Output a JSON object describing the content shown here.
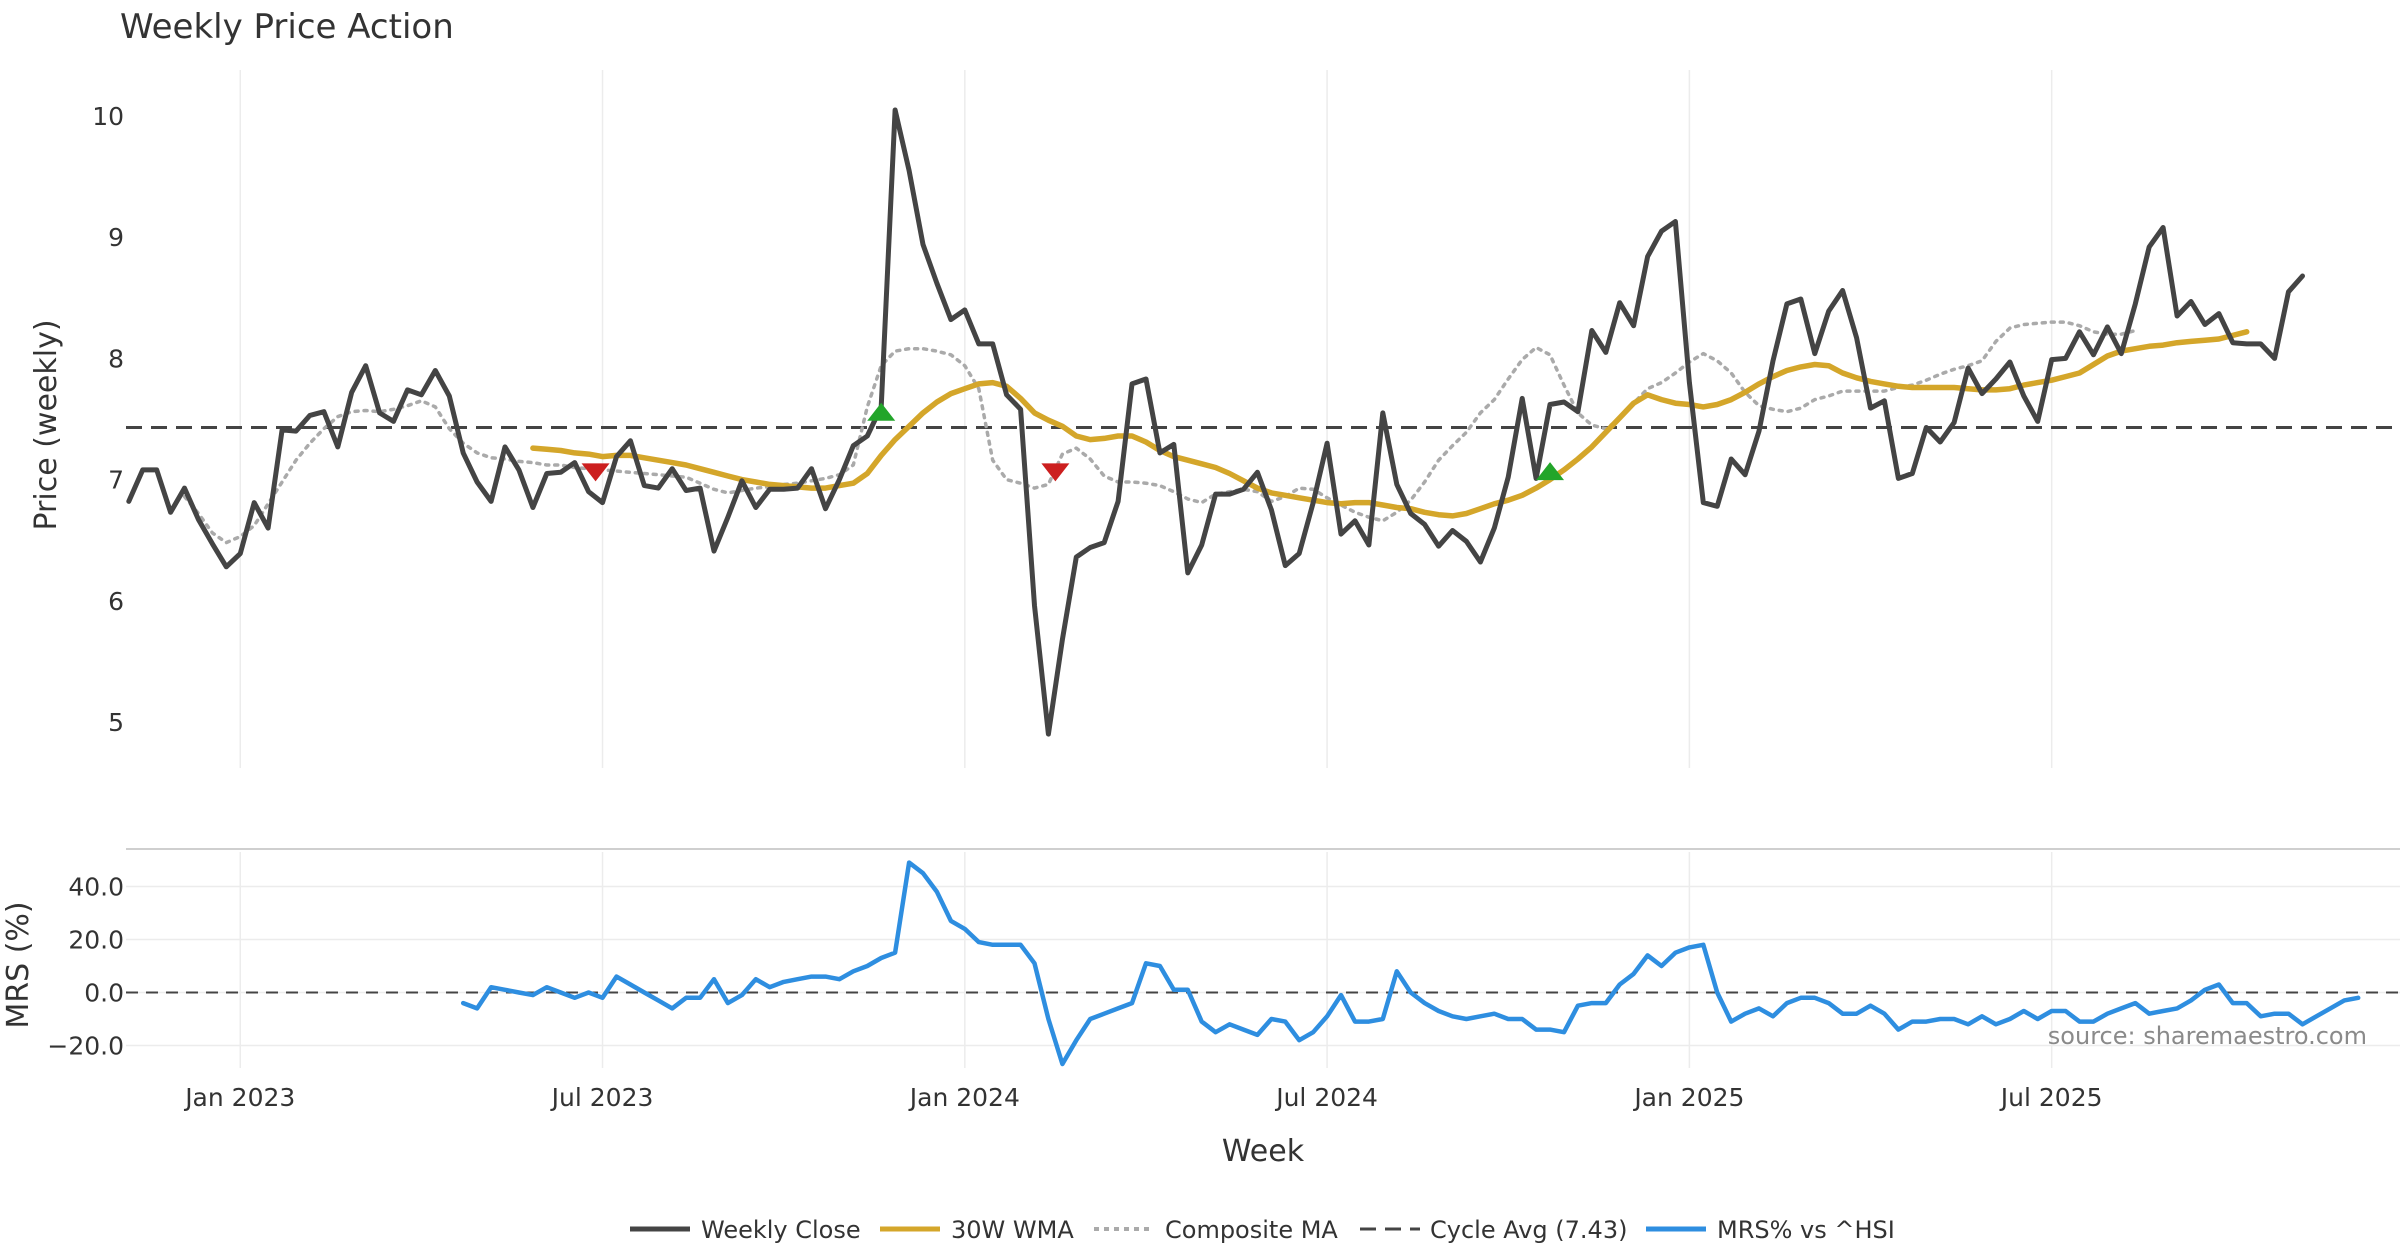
{
  "chart_data": {
    "type": "line",
    "title": "Weekly Price Action",
    "xlabel": "Week",
    "source": "source: sharemaestro.com",
    "x_ticks": [
      {
        "label": "Jan 2023",
        "week": 13
      },
      {
        "label": "Jul 2023",
        "week": 39
      },
      {
        "label": "Jan 2024",
        "week": 65
      },
      {
        "label": "Jul 2024",
        "week": 91
      },
      {
        "label": "Jan 2025",
        "week": 117
      },
      {
        "label": "Jul 2025",
        "week": 143
      }
    ],
    "x_range": [
      4.8,
      168
    ],
    "price_panel": {
      "ylabel": "Price (weekly)",
      "ylim": [
        4.62,
        10.38
      ],
      "yticks": [
        "5",
        "6",
        "7",
        "8",
        "9",
        "10"
      ],
      "grid": true
    },
    "mrs_panel": {
      "ylabel": "MRS (%)",
      "ylim": [
        -28.5,
        53.0
      ],
      "yticks": [
        "−20.0",
        "0.0",
        "20.0",
        "40.0"
      ],
      "grid": true
    },
    "cycle_avg": 7.43,
    "series": [
      {
        "name": "Weekly Close",
        "label": "Weekly Close",
        "color": "#444444",
        "style": "solid",
        "start_week": 5,
        "values": [
          6.82,
          7.08,
          7.08,
          6.73,
          6.93,
          6.67,
          6.47,
          6.28,
          6.39,
          6.81,
          6.6,
          7.41,
          7.4,
          7.53,
          7.56,
          7.27,
          7.72,
          7.94,
          7.55,
          7.48,
          7.74,
          7.7,
          7.9,
          7.69,
          7.22,
          6.98,
          6.82,
          7.27,
          7.08,
          6.77,
          7.05,
          7.06,
          7.14,
          6.9,
          6.81,
          7.19,
          7.32,
          6.95,
          6.93,
          7.09,
          6.91,
          6.93,
          6.41,
          6.69,
          6.99,
          6.77,
          6.92,
          6.92,
          6.93,
          7.09,
          6.76,
          7.0,
          7.28,
          7.36,
          7.6,
          10.05,
          9.55,
          8.94,
          8.62,
          8.32,
          8.4,
          8.12,
          8.12,
          7.7,
          7.58,
          5.96,
          4.9,
          5.68,
          6.36,
          6.44,
          6.48,
          6.82,
          7.79,
          7.83,
          7.22,
          7.29,
          6.23,
          6.46,
          6.88,
          6.88,
          6.92,
          7.06,
          6.75,
          6.29,
          6.39,
          6.81,
          7.3,
          6.55,
          6.66,
          6.46,
          7.55,
          6.96,
          6.72,
          6.63,
          6.45,
          6.58,
          6.49,
          6.32,
          6.6,
          7.02,
          7.67,
          7.01,
          7.62,
          7.64,
          7.56,
          8.23,
          8.05,
          8.46,
          8.27,
          8.84,
          9.05,
          9.13,
          7.8,
          6.81,
          6.78,
          7.17,
          7.04,
          7.4,
          7.98,
          8.45,
          8.49,
          8.04,
          8.39,
          8.56,
          8.17,
          7.59,
          7.65,
          7.01,
          7.05,
          7.43,
          7.31,
          7.47,
          7.92,
          7.71,
          7.83,
          7.97,
          7.69,
          7.48,
          7.99,
          8.0,
          8.22,
          8.03,
          8.26,
          8.04,
          8.45,
          8.92,
          9.08,
          8.35,
          8.47,
          8.28,
          8.37,
          8.13,
          8.12,
          8.12,
          8.0,
          8.55,
          8.68
        ]
      },
      {
        "name": "30W WMA",
        "label": "30W WMA",
        "color": "#d4a62a",
        "style": "solid",
        "start_week": 34,
        "values": [
          7.26,
          7.25,
          7.24,
          7.22,
          7.21,
          7.19,
          7.2,
          7.2,
          7.18,
          7.16,
          7.14,
          7.12,
          7.09,
          7.06,
          7.03,
          7.0,
          6.98,
          6.96,
          6.95,
          6.94,
          6.93,
          6.93,
          6.95,
          6.97,
          7.05,
          7.2,
          7.33,
          7.44,
          7.55,
          7.64,
          7.71,
          7.75,
          7.79,
          7.8,
          7.77,
          7.67,
          7.55,
          7.49,
          7.44,
          7.36,
          7.33,
          7.34,
          7.36,
          7.36,
          7.31,
          7.24,
          7.19,
          7.16,
          7.13,
          7.1,
          7.05,
          6.99,
          6.93,
          6.89,
          6.87,
          6.85,
          6.83,
          6.81,
          6.8,
          6.81,
          6.81,
          6.79,
          6.77,
          6.76,
          6.73,
          6.71,
          6.7,
          6.72,
          6.76,
          6.8,
          6.83,
          6.87,
          6.93,
          7.0,
          7.08,
          7.17,
          7.27,
          7.39,
          7.51,
          7.63,
          7.7,
          7.66,
          7.63,
          7.62,
          7.6,
          7.62,
          7.66,
          7.72,
          7.79,
          7.85,
          7.9,
          7.93,
          7.95,
          7.94,
          7.88,
          7.84,
          7.81,
          7.79,
          7.77,
          7.76,
          7.76,
          7.76,
          7.76,
          7.75,
          7.74,
          7.74,
          7.75,
          7.78,
          7.8,
          7.82,
          7.85,
          7.88,
          7.95,
          8.02,
          8.06,
          8.08,
          8.1,
          8.11,
          8.13,
          8.14,
          8.15,
          8.16,
          8.19,
          8.22
        ]
      },
      {
        "name": "Composite MA",
        "label": "Composite MA",
        "color": "#aaaaaa",
        "style": "dotted",
        "start_week": 9,
        "values": [
          6.86,
          6.72,
          6.56,
          6.48,
          6.53,
          6.62,
          6.8,
          6.98,
          7.16,
          7.3,
          7.42,
          7.52,
          7.56,
          7.57,
          7.56,
          7.58,
          7.61,
          7.65,
          7.6,
          7.42,
          7.3,
          7.22,
          7.18,
          7.17,
          7.15,
          7.14,
          7.12,
          7.12,
          7.1,
          7.09,
          7.08,
          7.07,
          7.06,
          7.05,
          7.04,
          7.03,
          7.02,
          6.97,
          6.92,
          6.89,
          6.91,
          6.93,
          6.94,
          6.96,
          6.97,
          6.99,
          7.01,
          7.04,
          7.12,
          7.6,
          7.94,
          8.06,
          8.08,
          8.08,
          8.06,
          8.03,
          7.94,
          7.75,
          7.16,
          7.0,
          6.97,
          6.93,
          6.96,
          7.21,
          7.26,
          7.17,
          7.03,
          6.98,
          6.98,
          6.97,
          6.95,
          6.9,
          6.84,
          6.81,
          6.88,
          6.9,
          6.92,
          6.9,
          6.82,
          6.86,
          6.93,
          6.92,
          6.85,
          6.79,
          6.73,
          6.69,
          6.66,
          6.73,
          6.83,
          6.98,
          7.16,
          7.28,
          7.39,
          7.55,
          7.66,
          7.83,
          7.99,
          8.09,
          8.03,
          7.78,
          7.55,
          7.45,
          7.42,
          7.5,
          7.63,
          7.75,
          7.8,
          7.88,
          7.97,
          8.04,
          7.98,
          7.88,
          7.72,
          7.61,
          7.58,
          7.56,
          7.59,
          7.66,
          7.69,
          7.73,
          7.73,
          7.73,
          7.73,
          7.76,
          7.78,
          7.82,
          7.87,
          7.91,
          7.94,
          7.98,
          8.14,
          8.25,
          8.28,
          8.29,
          8.3,
          8.3,
          8.27,
          8.22,
          8.2,
          8.2,
          8.23
        ]
      }
    ],
    "cycle_line": {
      "label": "Cycle Avg (7.43)",
      "color": "#444444",
      "style": "dashed"
    },
    "mrs_series": {
      "name": "MRS% vs ^HSI",
      "label": "MRS% vs ^HSI",
      "color": "#2e8ee0",
      "start_week": 29,
      "values": [
        -4,
        -6,
        2,
        1,
        0,
        -1,
        2,
        0,
        -2,
        0,
        -2,
        6,
        3,
        0,
        -3,
        -6,
        -2,
        -2,
        5,
        -4,
        -1,
        5,
        2,
        4,
        5,
        6,
        6,
        5,
        8,
        10,
        13,
        15,
        49,
        45,
        38,
        27,
        24,
        19,
        18,
        18,
        18,
        11,
        -10,
        -27,
        -18,
        -10,
        -8,
        -6,
        -4,
        11,
        10,
        1,
        1,
        -11,
        -15,
        -12,
        -14,
        -16,
        -10,
        -11,
        -18,
        -15,
        -9,
        -1,
        -11,
        -11,
        -10,
        8,
        0,
        -4,
        -7,
        -9,
        -10,
        -9,
        -8,
        -10,
        -10,
        -14,
        -14,
        -15,
        -5,
        -4,
        -4,
        3,
        7,
        14,
        10,
        15,
        17,
        18,
        0,
        -11,
        -8,
        -6,
        -9,
        -4,
        -2,
        -2,
        -4,
        -8,
        -8,
        -5,
        -8,
        -14,
        -11,
        -11,
        -10,
        -10,
        -12,
        -9,
        -12,
        -10,
        -7,
        -10,
        -7,
        -7,
        -11,
        -11,
        -8,
        -6,
        -4,
        -8,
        -7,
        -6,
        -3,
        1,
        3,
        -4,
        -4,
        -9,
        -8,
        -8,
        -12,
        -9,
        -6,
        -3,
        -2
      ]
    },
    "signals": [
      {
        "type": "sell",
        "week": 38.5,
        "value": 7.06,
        "color": "#cc1f1f"
      },
      {
        "type": "buy",
        "week": 59,
        "value": 7.56,
        "color": "#22a52a"
      },
      {
        "type": "sell",
        "week": 71.5,
        "value": 7.06,
        "color": "#cc1f1f"
      },
      {
        "type": "buy",
        "week": 107,
        "value": 7.07,
        "color": "#22a52a"
      }
    ]
  }
}
